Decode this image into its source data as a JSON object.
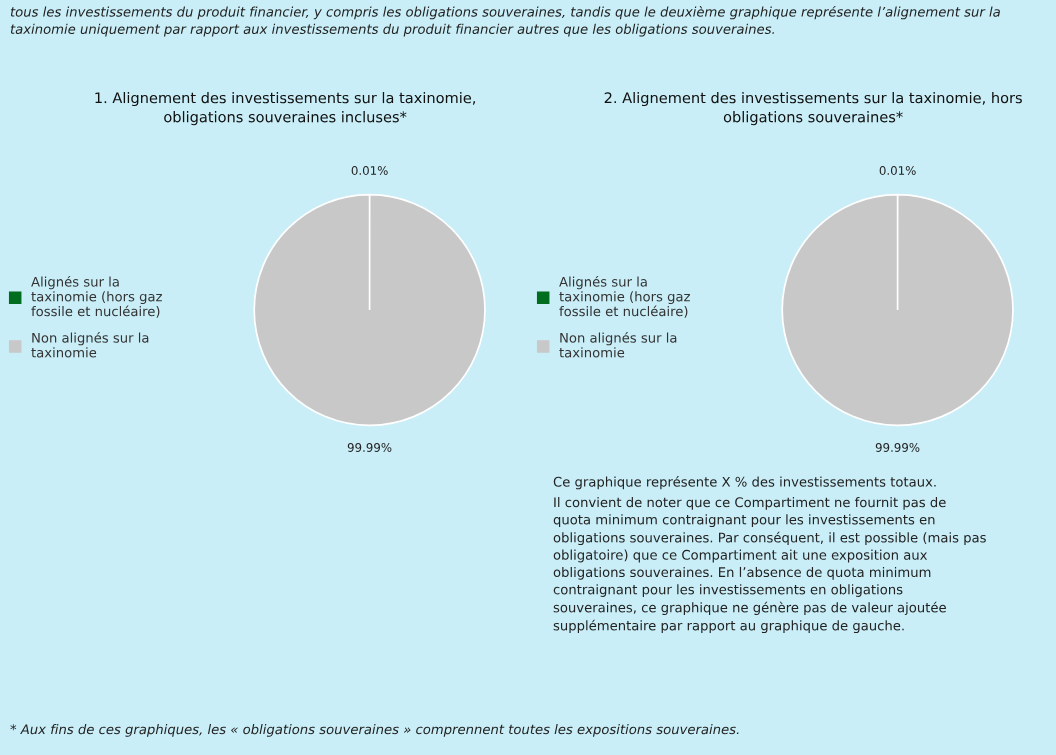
{
  "chart_data": [
    {
      "type": "pie",
      "title": "1. Alignement des investissements sur la taxinomie, obligations souveraines incluses*",
      "categories": [
        "Alignés sur la taxinomie (hors gaz fossile et nucléaire)",
        "Non alignés sur la taxinomie"
      ],
      "values": [
        0.01,
        99.99
      ],
      "colors": [
        "#006e1e",
        "#c8c8c8"
      ],
      "value_labels": [
        "0.01%",
        "99.99%"
      ],
      "legend": "left",
      "annotations": [
        "tous les investissements du produit financier, y compris les obligations souveraines, tandis que le deuxième graphique représente l’alignement sur la taxinomie uniquement par rapport aux investissements du produit financier autres que les obligations souveraines."
      ]
    },
    {
      "type": "pie",
      "title": "2. Alignement des investissements sur la taxinomie, hors obligations souveraines*",
      "categories": [
        "Alignés sur la taxinomie (hors gaz fossile et nucléaire)",
        "Non alignés sur la taxinomie"
      ],
      "values": [
        0.01,
        99.99
      ],
      "colors": [
        "#006e1e",
        "#c8c8c8"
      ],
      "value_labels": [
        "0.01%",
        "99.99%"
      ],
      "legend": "left",
      "annotations": [
        "Ce graphique représente X % des investissements totaux.",
        "Il convient de noter que ce Compartiment ne fournit pas de quota minimum contraignant pour les investissements en obligations souveraines. Par conséquent, il est possible (mais pas obligatoire) que ce Compartiment ait une exposition aux obligations souveraines. En l’absence de quota minimum contraignant pour les investissements en obligations souveraines, ce graphique ne génère pas de valeur ajoutée supplémentaire par rapport au graphique de gauche.",
        "* Aux fins de ces graphiques, les « obligations souveraines » comprennent toutes les expositions souveraines."
      ]
    }
  ]
}
